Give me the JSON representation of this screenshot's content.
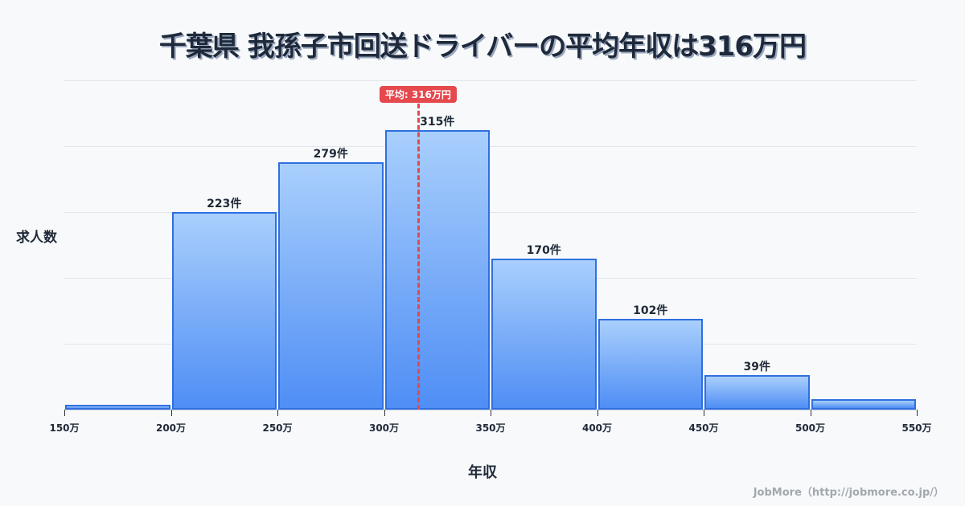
{
  "title": "千葉県 我孫子市回送ドライバーの平均年収は316万円",
  "ylabel": "求人数",
  "xlabel": "年収",
  "credit": "JobMore（http://jobmore.co.jp/）",
  "average": {
    "value": 316,
    "label": "平均: 316万円"
  },
  "colors": {
    "bar_top": "#a9cffc",
    "bar_bottom": "#4f8ef5",
    "bar_border": "#2f6fe0",
    "average": "#e5484d"
  },
  "chart_data": {
    "type": "bar",
    "title": "千葉県 我孫子市回送ドライバーの平均年収は316万円",
    "xlabel": "年収",
    "ylabel": "求人数",
    "bins": [
      [
        150,
        200
      ],
      [
        200,
        250
      ],
      [
        250,
        300
      ],
      [
        300,
        350
      ],
      [
        350,
        400
      ],
      [
        400,
        450
      ],
      [
        450,
        500
      ],
      [
        500,
        550
      ]
    ],
    "categories": [
      "150-200万",
      "200-250万",
      "250-300万",
      "300-350万",
      "350-400万",
      "400-450万",
      "450-500万",
      "500-550万"
    ],
    "values": [
      5,
      223,
      279,
      315,
      170,
      102,
      39,
      12
    ],
    "value_labels": [
      "",
      "223件",
      "279件",
      "315件",
      "170件",
      "102件",
      "39件",
      ""
    ],
    "x_ticks": [
      "150万",
      "200万",
      "250万",
      "300万",
      "350万",
      "400万",
      "450万",
      "500万",
      "550万"
    ],
    "xlim": [
      150,
      550
    ],
    "grid": true,
    "annotations": [
      {
        "type": "vline",
        "x": 316,
        "label": "平均: 316万円"
      }
    ]
  }
}
